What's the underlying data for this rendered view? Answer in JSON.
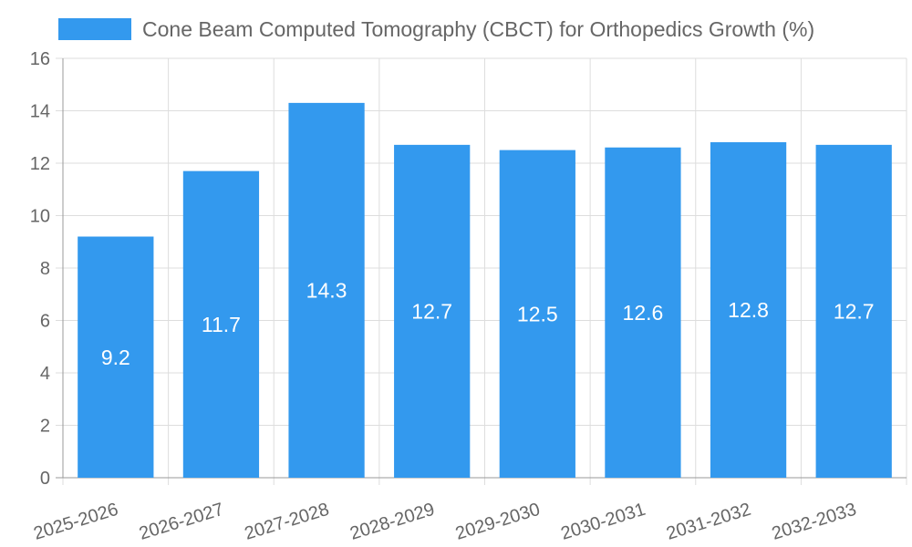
{
  "chart_data": {
    "type": "bar",
    "title": "",
    "xlabel": "",
    "ylabel": "",
    "categories": [
      "2025-2026",
      "2026-2027",
      "2027-2028",
      "2028-2029",
      "2029-2030",
      "2030-2031",
      "2031-2032",
      "2032-2033"
    ],
    "series": [
      {
        "name": "Cone Beam Computed Tomography (CBCT) for Orthopedics Growth (%)",
        "values": [
          9.2,
          11.7,
          14.3,
          12.7,
          12.5,
          12.6,
          12.8,
          12.7
        ],
        "color": "#3399ee"
      }
    ],
    "ylim": [
      0,
      16
    ],
    "yticks": [
      0,
      2,
      4,
      6,
      8,
      10,
      12,
      14,
      16
    ],
    "grid": true,
    "legend_position": "top-center",
    "data_labels": true
  }
}
